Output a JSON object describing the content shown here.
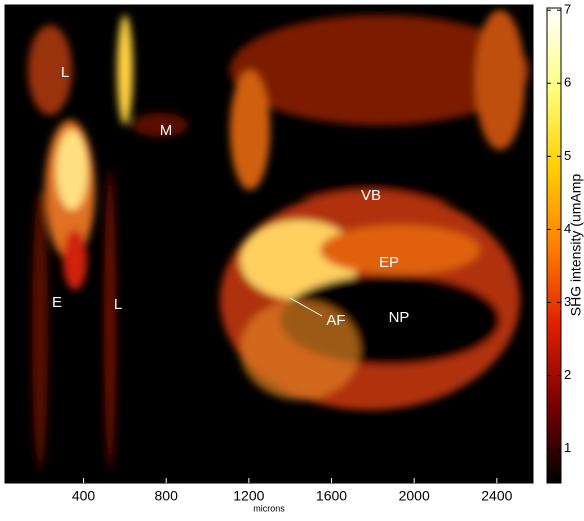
{
  "chart_data": {
    "type": "image",
    "x_label": "microns",
    "colorbar_label": "SHG intensity (umAmp",
    "xlim": [
      20,
      2575
    ],
    "xticks": [
      400,
      800,
      1200,
      1600,
      2000,
      2400
    ],
    "clim": [
      0.53,
      7.03
    ],
    "cticks": [
      1,
      2,
      3,
      4,
      5,
      6,
      7
    ],
    "colormap": [
      "#000000",
      "#7a0000",
      "#e02000",
      "#ff8000",
      "#ffd000",
      "#ffff80",
      "#ffffff"
    ],
    "annotations": [
      "L",
      "M",
      "E",
      "L",
      "VB",
      "EP",
      "AF",
      "NP"
    ]
  }
}
